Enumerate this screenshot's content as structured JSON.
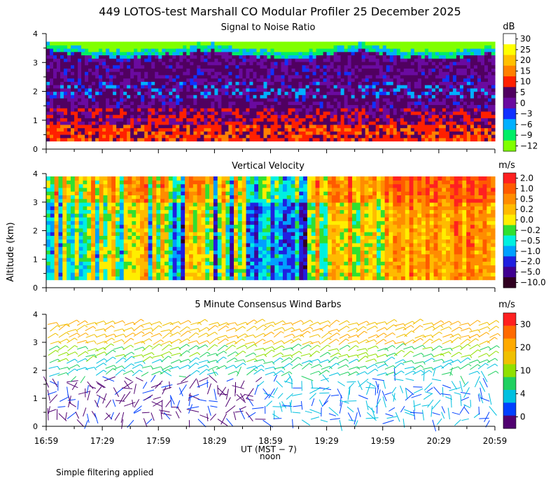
{
  "title": "449 LOTOS-test Marshall CO Modular Profiler 25 December 2025",
  "footer_note": "Simple filtering applied",
  "x_axis": {
    "label": "UT  (MST − 7)",
    "sublabel": "noon",
    "ticks": [
      "16:59",
      "17:29",
      "17:59",
      "18:29",
      "18:59",
      "19:29",
      "19:59",
      "20:29",
      "20:59"
    ]
  },
  "y_axis_label": "Altitude (km)",
  "chart_data": [
    {
      "type": "heatmap",
      "title": "Signal to Noise Ratio",
      "units": "dB",
      "x_range": [
        "16:59",
        "20:59"
      ],
      "ylim": [
        0,
        4
      ],
      "yticks": [
        "0",
        "1",
        "2",
        "3",
        "4"
      ],
      "colorbar": {
        "labels": [
          "30",
          "25",
          "20",
          "15",
          "10",
          "5",
          "0",
          "−3",
          "−6",
          "−9",
          "−12"
        ],
        "colors": [
          "#ffffff",
          "#ffff00",
          "#ffc000",
          "#ff8000",
          "#ff2000",
          "#500060",
          "#6a0aa0",
          "#1030ff",
          "#00b0ff",
          "#00ee66",
          "#80ff00"
        ]
      },
      "profile_summary": [
        {
          "altitude_km": 0.5,
          "typical_db": 10
        },
        {
          "altitude_km": 1.0,
          "typical_db": 5
        },
        {
          "altitude_km": 2.0,
          "typical_db": 3
        },
        {
          "altitude_km": 3.0,
          "typical_db": 3
        },
        {
          "altitude_km": 3.5,
          "typical_db": -6
        },
        {
          "altitude_km": 3.9,
          "typical_db": -12
        }
      ]
    },
    {
      "type": "heatmap",
      "title": "Vertical Velocity",
      "units": "m/s",
      "x_range": [
        "16:59",
        "20:59"
      ],
      "ylim": [
        0,
        4
      ],
      "yticks": [
        "0",
        "1",
        "2",
        "3",
        "4"
      ],
      "colorbar": {
        "labels": [
          "2.0",
          "1.0",
          "0.5",
          "0.2",
          "0.0",
          "−0.2",
          "−0.5",
          "−1.0",
          "−2.0",
          "−5.0",
          "−10.0"
        ],
        "colors": [
          "#ff2020",
          "#ff5a00",
          "#ff8c00",
          "#ffbb00",
          "#ffee00",
          "#30e030",
          "#00f0e0",
          "#00a0ff",
          "#2020e0",
          "#400090",
          "#300020"
        ]
      }
    },
    {
      "type": "scatter",
      "title": "5 Minute Consensus Wind Barbs",
      "units": "m/s",
      "x_range": [
        "16:59",
        "20:59"
      ],
      "ylim": [
        0,
        4
      ],
      "yticks": [
        "0",
        "1",
        "2",
        "3",
        "4"
      ],
      "colorbar": {
        "labels": [
          "30",
          "20",
          "10",
          "4",
          "0"
        ],
        "colors": [
          "#ff2020",
          "#ff6a00",
          "#ffaa00",
          "#f0c000",
          "#90e000",
          "#20d060",
          "#00c0e0",
          "#0040ff",
          "#500070"
        ]
      },
      "speed_by_altitude": [
        {
          "altitude_km": 0.5,
          "typical_ms": 2
        },
        {
          "altitude_km": 1.5,
          "typical_ms": 3
        },
        {
          "altitude_km": 2.2,
          "typical_ms": 6
        },
        {
          "altitude_km": 2.8,
          "typical_ms": 12
        },
        {
          "altitude_km": 3.5,
          "typical_ms": 20
        }
      ]
    }
  ]
}
